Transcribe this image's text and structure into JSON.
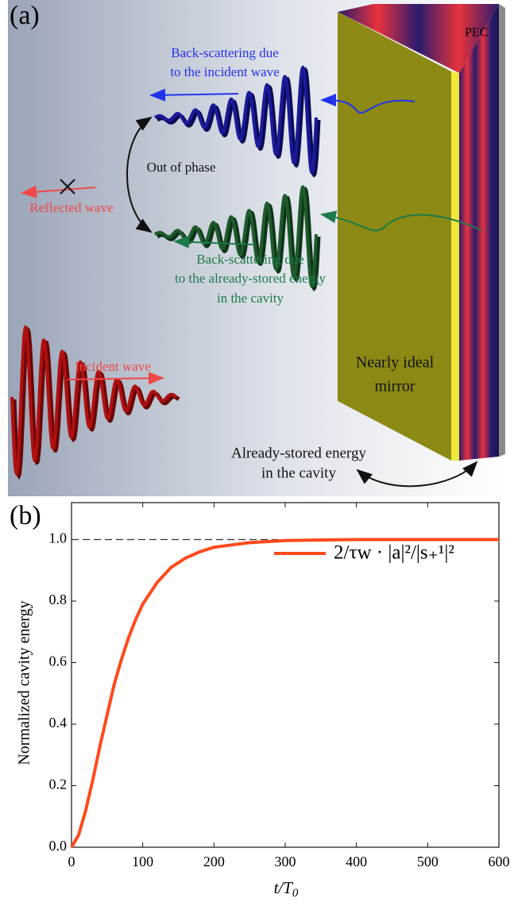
{
  "panel_a": {
    "label": "(a)",
    "pec": "PEC",
    "backscatter_incident": [
      "Back-scattering due",
      "to the incident wave"
    ],
    "out_of_phase": "Out of phase",
    "reflected": "Reflected wave",
    "backscatter_stored": [
      "Back-scattering due",
      "to the already-stored energy",
      "in the cavity"
    ],
    "incident": "Incident wave",
    "mirror": [
      "Nearly ideal",
      "mirror"
    ],
    "stored": [
      "Already-stored energy",
      "in the cavity"
    ]
  },
  "chart_data": {
    "type": "line",
    "label": "(b)",
    "x_label": {
      "main": "t/T",
      "sub": "0"
    },
    "y_label": "Normalized cavity energy",
    "x": [
      0,
      10,
      20,
      30,
      40,
      50,
      60,
      70,
      80,
      90,
      100,
      120,
      140,
      160,
      180,
      200,
      250,
      300,
      400,
      500,
      600
    ],
    "series": [
      {
        "name": "2/τw · |a|²/|s₊¹|²",
        "color": "#ff4a1c",
        "values": [
          0,
          0.04,
          0.12,
          0.22,
          0.33,
          0.43,
          0.53,
          0.61,
          0.68,
          0.74,
          0.79,
          0.86,
          0.91,
          0.94,
          0.96,
          0.975,
          0.99,
          0.997,
          1.0,
          1.0,
          1.0
        ]
      }
    ],
    "reference_line": 1.0,
    "xlim": [
      0,
      600
    ],
    "xticks": [
      0,
      100,
      200,
      300,
      400,
      500,
      600
    ],
    "ylim": [
      0,
      1.12
    ],
    "yticks": [
      {
        "value": 0,
        "label": "0.0"
      },
      {
        "value": 0.2,
        "label": "0.2"
      },
      {
        "value": 0.4,
        "label": "0.4"
      },
      {
        "value": 0.6,
        "label": "0.6"
      },
      {
        "value": 0.8,
        "label": "0.8"
      },
      {
        "value": 1,
        "label": "1.0"
      }
    ]
  }
}
